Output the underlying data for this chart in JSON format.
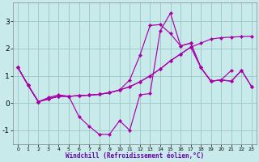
{
  "xlabel": "Windchill (Refroidissement éolien,°C)",
  "background_color": "#c8eaea",
  "grid_color": "#a0cccc",
  "axis_bar_color": "#6600aa",
  "line_color": "#aa00aa",
  "xlim": [
    -0.5,
    23.5
  ],
  "ylim": [
    -1.5,
    3.7
  ],
  "xticks": [
    0,
    1,
    2,
    3,
    4,
    5,
    6,
    7,
    8,
    9,
    10,
    11,
    12,
    13,
    14,
    15,
    16,
    17,
    18,
    19,
    20,
    21,
    22,
    23
  ],
  "yticks": [
    -1,
    0,
    1,
    2,
    3
  ],
  "series": [
    {
      "x": [
        0,
        1,
        2,
        3,
        4,
        5,
        6,
        7,
        8,
        9,
        10,
        11,
        12,
        13,
        14,
        15,
        16,
        17,
        18,
        19,
        20,
        21
      ],
      "y": [
        1.3,
        0.65,
        0.05,
        0.2,
        0.3,
        0.25,
        -0.5,
        -0.85,
        -1.15,
        -1.15,
        -0.65,
        -1.0,
        0.3,
        0.35,
        2.65,
        3.3,
        2.1,
        2.2,
        1.3,
        0.8,
        0.85,
        1.2
      ]
    },
    {
      "x": [
        0,
        1,
        2,
        3,
        4,
        5,
        6,
        7,
        8,
        9,
        10,
        11,
        12,
        13,
        14,
        15,
        16,
        17,
        18,
        19,
        20,
        21,
        22,
        23
      ],
      "y": [
        1.3,
        0.65,
        0.05,
        0.15,
        0.25,
        0.25,
        0.27,
        0.29,
        0.32,
        0.38,
        0.48,
        0.6,
        0.78,
        1.0,
        1.25,
        1.55,
        1.8,
        2.05,
        2.2,
        2.35,
        2.4,
        2.42,
        2.44,
        2.45
      ]
    },
    {
      "x": [
        0,
        1,
        2,
        3,
        4,
        5,
        6,
        7,
        8,
        9,
        10,
        11,
        12,
        13,
        14,
        15,
        16,
        17,
        18,
        19,
        20,
        21,
        22,
        23
      ],
      "y": [
        1.3,
        0.65,
        0.05,
        0.15,
        0.25,
        0.25,
        0.27,
        0.29,
        0.32,
        0.38,
        0.48,
        0.85,
        1.75,
        2.85,
        2.88,
        2.55,
        2.1,
        2.2,
        1.3,
        0.8,
        0.85,
        0.8,
        1.2,
        0.6
      ]
    },
    {
      "x": [
        0,
        1,
        2,
        3,
        4,
        5,
        6,
        7,
        8,
        9,
        10,
        11,
        12,
        13,
        14,
        15,
        16,
        17,
        18,
        19,
        20,
        21,
        22,
        23
      ],
      "y": [
        1.3,
        0.65,
        0.05,
        0.15,
        0.25,
        0.25,
        0.27,
        0.29,
        0.32,
        0.38,
        0.48,
        0.6,
        0.78,
        1.0,
        1.25,
        1.55,
        1.8,
        2.05,
        1.3,
        0.8,
        0.85,
        0.8,
        1.2,
        0.6
      ]
    }
  ]
}
